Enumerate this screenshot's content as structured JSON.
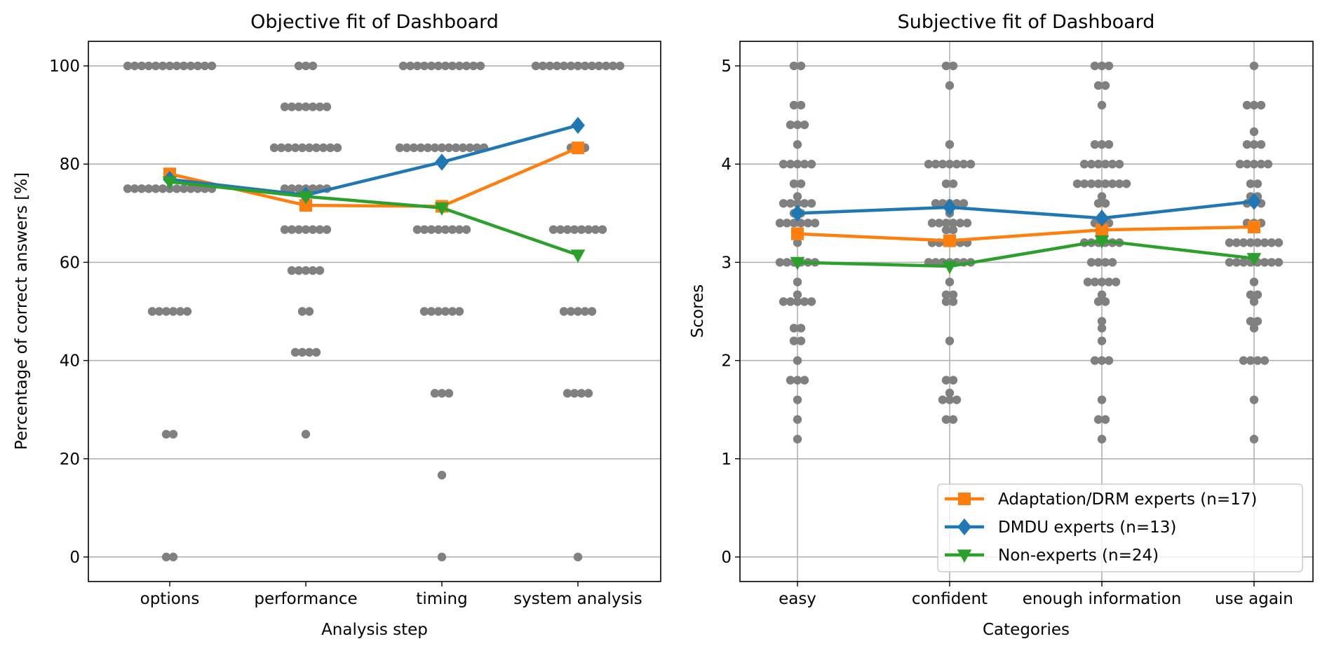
{
  "chart_data": [
    {
      "type": "line",
      "title": "Objective fit of Dashboard",
      "xlabel": "Analysis step",
      "ylabel": "Percentage of correct answers [%]",
      "categories": [
        "options",
        "performance",
        "timing",
        "system analysis"
      ],
      "ylim": [
        -5,
        105
      ],
      "yticks": [
        0,
        20,
        40,
        60,
        80,
        100
      ],
      "grid": "y",
      "series": [
        {
          "name": "Adaptation/DRM experts (n=17)",
          "color": "#ff7f0e",
          "marker": "square",
          "values": [
            78.0,
            71.6,
            71.4,
            83.3
          ]
        },
        {
          "name": "DMDU experts (n=13)",
          "color": "#1f77b4",
          "marker": "diamond",
          "values": [
            76.9,
            73.7,
            80.4,
            87.9
          ]
        },
        {
          "name": "Non-experts  (n=24)",
          "color": "#2ca02c",
          "marker": "triangle-down",
          "values": [
            76.4,
            73.4,
            71.1,
            61.5
          ]
        }
      ],
      "individual_points": {
        "color": "#808080",
        "columns": [
          [
            [
              100,
              13
            ],
            [
              75,
              13
            ],
            [
              50,
              6
            ],
            [
              25,
              2
            ],
            [
              0,
              2
            ]
          ],
          [
            [
              100,
              3
            ],
            [
              91.67,
              7
            ],
            [
              83.33,
              10
            ],
            [
              75,
              7
            ],
            [
              66.67,
              7
            ],
            [
              58.33,
              5
            ],
            [
              50,
              2
            ],
            [
              41.67,
              4
            ],
            [
              25,
              1
            ]
          ],
          [
            [
              100,
              12
            ],
            [
              83.33,
              13
            ],
            [
              66.67,
              8
            ],
            [
              50,
              6
            ],
            [
              33.33,
              3
            ],
            [
              16.67,
              1
            ],
            [
              0,
              1
            ]
          ],
          [
            [
              100,
              13
            ],
            [
              83.33,
              3
            ],
            [
              66.67,
              8
            ],
            [
              50,
              5
            ],
            [
              33.33,
              4
            ],
            [
              0,
              1
            ]
          ]
        ]
      }
    },
    {
      "type": "line",
      "title": "Subjective fit of Dashboard",
      "xlabel": "Categories",
      "ylabel": "Scores",
      "categories": [
        "easy",
        "confident",
        "enough information",
        "use again"
      ],
      "ylim": [
        -0.25,
        5.25
      ],
      "yticks": [
        0,
        1,
        2,
        3,
        4,
        5
      ],
      "grid": "both",
      "legend": "lower-right",
      "series": [
        {
          "name": "Adaptation/DRM experts (n=17)",
          "color": "#ff7f0e",
          "marker": "square",
          "values": [
            3.29,
            3.22,
            3.33,
            3.36
          ]
        },
        {
          "name": "DMDU experts (n=13)",
          "color": "#1f77b4",
          "marker": "diamond",
          "values": [
            3.5,
            3.56,
            3.45,
            3.62
          ]
        },
        {
          "name": "Non-experts  (n=24)",
          "color": "#2ca02c",
          "marker": "triangle-down",
          "values": [
            3.0,
            2.96,
            3.22,
            3.04
          ]
        }
      ],
      "individual_points": {
        "color": "#808080",
        "columns": [
          [
            [
              5,
              2
            ],
            [
              4.6,
              2
            ],
            [
              4.4,
              3
            ],
            [
              4.2,
              1
            ],
            [
              4,
              5
            ],
            [
              3.8,
              2
            ],
            [
              3.67,
              1
            ],
            [
              3.6,
              5
            ],
            [
              3.5,
              2
            ],
            [
              3.4,
              6
            ],
            [
              3.2,
              1
            ],
            [
              3,
              6
            ],
            [
              2.8,
              1
            ],
            [
              2.67,
              1
            ],
            [
              2.6,
              5
            ],
            [
              2.33,
              2
            ],
            [
              2.2,
              2
            ],
            [
              2,
              1
            ],
            [
              1.8,
              3
            ],
            [
              1.6,
              1
            ],
            [
              1.4,
              1
            ],
            [
              1.2,
              1
            ]
          ],
          [
            [
              5,
              2
            ],
            [
              4.8,
              1
            ],
            [
              4.2,
              1
            ],
            [
              4,
              7
            ],
            [
              3.8,
              2
            ],
            [
              3.6,
              5
            ],
            [
              3.5,
              1
            ],
            [
              3.4,
              6
            ],
            [
              3.33,
              2
            ],
            [
              3.2,
              6
            ],
            [
              3,
              7
            ],
            [
              2.8,
              1
            ],
            [
              2.67,
              2
            ],
            [
              2.6,
              2
            ],
            [
              2.2,
              1
            ],
            [
              1.8,
              2
            ],
            [
              1.67,
              1
            ],
            [
              1.6,
              3
            ],
            [
              1.4,
              2
            ]
          ],
          [
            [
              5,
              3
            ],
            [
              4.8,
              2
            ],
            [
              4.6,
              1
            ],
            [
              4.2,
              3
            ],
            [
              4,
              6
            ],
            [
              3.8,
              8
            ],
            [
              3.67,
              1
            ],
            [
              3.6,
              2
            ],
            [
              3.4,
              3
            ],
            [
              3.2,
              6
            ],
            [
              3,
              4
            ],
            [
              2.8,
              5
            ],
            [
              2.67,
              1
            ],
            [
              2.6,
              2
            ],
            [
              2.4,
              1
            ],
            [
              2.33,
              1
            ],
            [
              2.2,
              1
            ],
            [
              2,
              3
            ],
            [
              1.6,
              1
            ],
            [
              1.4,
              2
            ],
            [
              1.2,
              1
            ]
          ],
          [
            [
              5,
              1
            ],
            [
              4.6,
              3
            ],
            [
              4.33,
              1
            ],
            [
              4.2,
              3
            ],
            [
              4,
              5
            ],
            [
              3.8,
              2
            ],
            [
              3.67,
              2
            ],
            [
              3.6,
              3
            ],
            [
              3.4,
              3
            ],
            [
              3.2,
              8
            ],
            [
              3,
              8
            ],
            [
              2.8,
              1
            ],
            [
              2.67,
              2
            ],
            [
              2.6,
              1
            ],
            [
              2.4,
              2
            ],
            [
              2.33,
              1
            ],
            [
              2,
              4
            ],
            [
              1.6,
              1
            ],
            [
              1.2,
              1
            ]
          ]
        ]
      }
    }
  ]
}
